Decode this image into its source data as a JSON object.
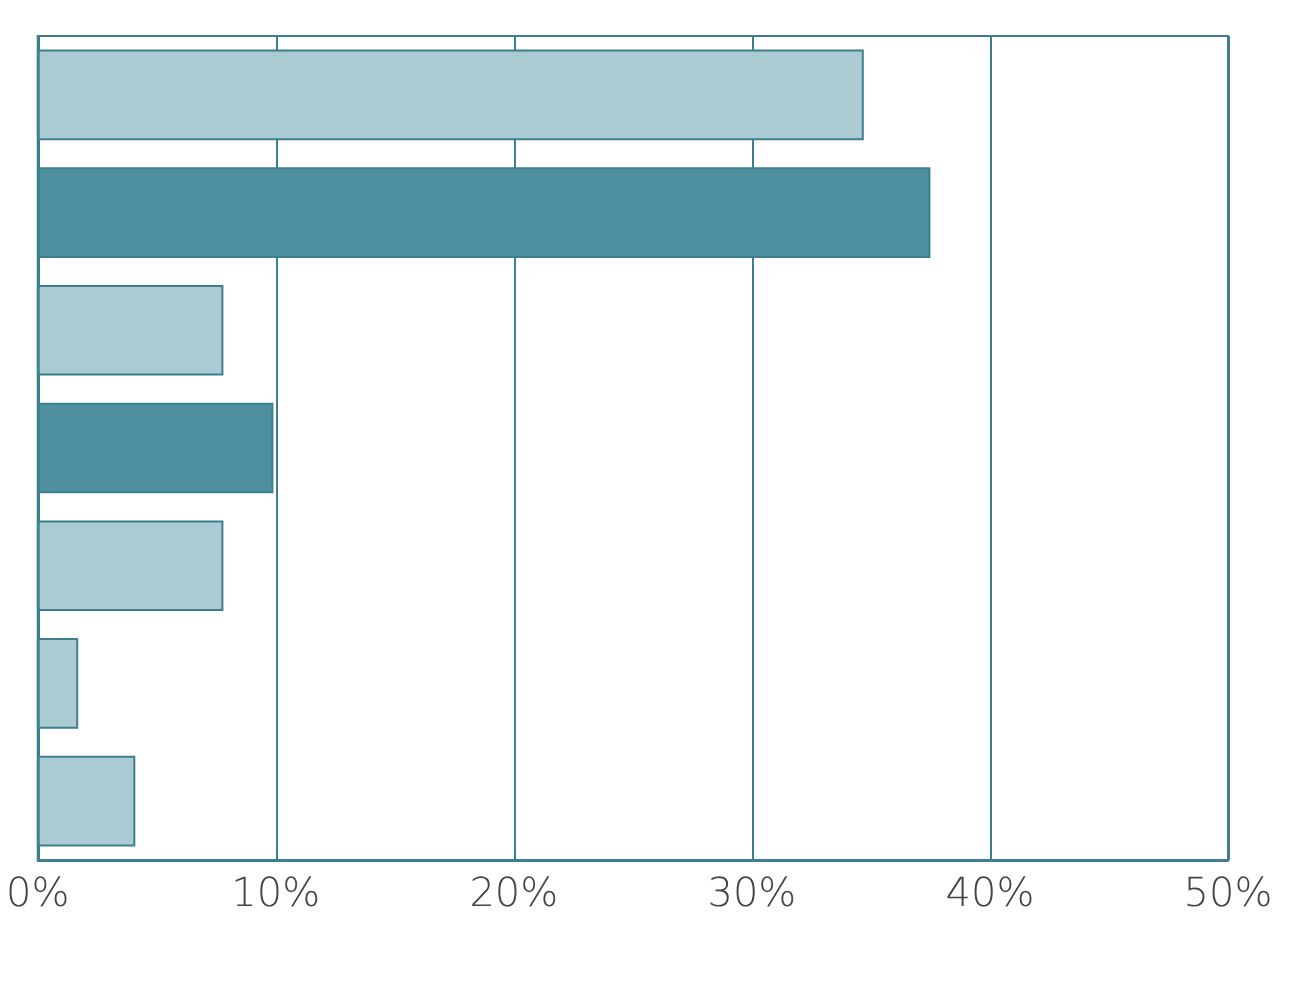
{
  "chart_data": {
    "type": "bar",
    "orientation": "horizontal",
    "categories": [
      null,
      null,
      null,
      null,
      null,
      null,
      null
    ],
    "values": [
      34.7,
      37.5,
      7.8,
      9.9,
      7.8,
      1.7,
      4.1
    ],
    "colors": [
      "#a9cbd1",
      "#4e8fa0",
      "#a9cbd1",
      "#4e8fa0",
      "#a9cbd1",
      "#a9cbd1",
      "#a9cbd1"
    ],
    "xlim": [
      0,
      50
    ],
    "xticks": [
      {
        "value": 0,
        "label": "0%"
      },
      {
        "value": 10,
        "label": "10%"
      },
      {
        "value": 20,
        "label": "20%"
      },
      {
        "value": 30,
        "label": "30%"
      },
      {
        "value": 40,
        "label": "40%"
      },
      {
        "value": 50,
        "label": "50%"
      }
    ],
    "grid": "x"
  }
}
